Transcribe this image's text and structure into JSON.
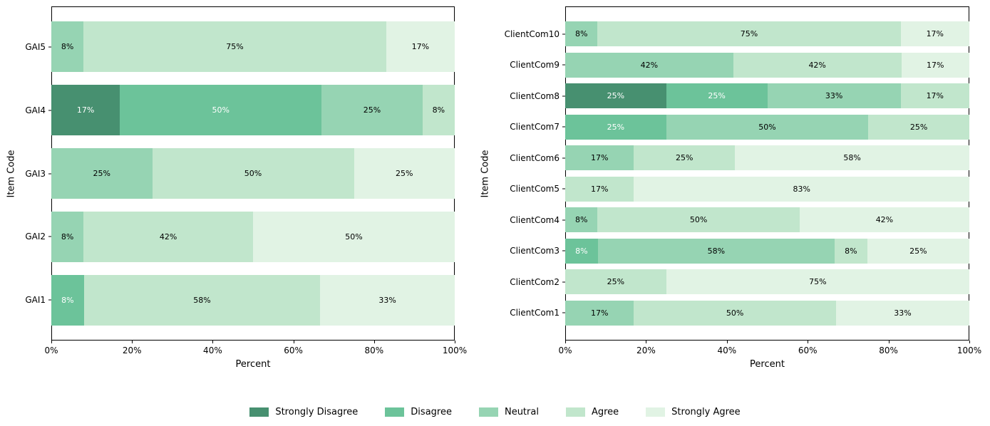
{
  "figure": {
    "background": "#ffffff"
  },
  "legend": {
    "items": [
      {
        "label": "Strongly Disagree",
        "color": "#479070"
      },
      {
        "label": "Disagree",
        "color": "#6cc39a"
      },
      {
        "label": "Neutral",
        "color": "#96d4b3"
      },
      {
        "label": "Agree",
        "color": "#c1e6cc"
      },
      {
        "label": "Strongly Agree",
        "color": "#e1f3e4"
      }
    ]
  },
  "chart_data": [
    {
      "type": "bar",
      "variant": "horizontal-stacked-likert",
      "title": "",
      "xlabel": "Percent",
      "ylabel": "Item Code",
      "xlim": [
        0,
        100
      ],
      "xtick_labels": [
        "0%",
        "20%",
        "40%",
        "60%",
        "80%",
        "100%"
      ],
      "value_suffix": "%",
      "grid": false,
      "category_order": "top-to-bottom",
      "categories": [
        "GAI5",
        "GAI4",
        "GAI3",
        "GAI2",
        "GAI1"
      ],
      "series": [
        {
          "name": "Strongly Disagree",
          "values": [
            0,
            17,
            0,
            0,
            0
          ]
        },
        {
          "name": "Disagree",
          "values": [
            0,
            50,
            0,
            0,
            8
          ]
        },
        {
          "name": "Neutral",
          "values": [
            8,
            25,
            25,
            8,
            0
          ]
        },
        {
          "name": "Agree",
          "values": [
            75,
            8,
            50,
            42,
            58
          ]
        },
        {
          "name": "Strongly Agree",
          "values": [
            17,
            0,
            25,
            50,
            33
          ]
        }
      ]
    },
    {
      "type": "bar",
      "variant": "horizontal-stacked-likert",
      "title": "",
      "xlabel": "Percent",
      "ylabel": "Item Code",
      "xlim": [
        0,
        100
      ],
      "xtick_labels": [
        "0%",
        "20%",
        "40%",
        "60%",
        "80%",
        "100%"
      ],
      "value_suffix": "%",
      "grid": false,
      "category_order": "top-to-bottom",
      "categories": [
        "ClientCom10",
        "ClientCom9",
        "ClientCom8",
        "ClientCom7",
        "ClientCom6",
        "ClientCom5",
        "ClientCom4",
        "ClientCom3",
        "ClientCom2",
        "ClientCom1"
      ],
      "series": [
        {
          "name": "Strongly Disagree",
          "values": [
            0,
            0,
            25,
            0,
            0,
            0,
            0,
            0,
            0,
            0
          ]
        },
        {
          "name": "Disagree",
          "values": [
            0,
            0,
            25,
            25,
            0,
            0,
            0,
            8,
            0,
            0
          ]
        },
        {
          "name": "Neutral",
          "values": [
            8,
            42,
            33,
            50,
            17,
            0,
            8,
            58,
            0,
            17
          ]
        },
        {
          "name": "Agree",
          "values": [
            75,
            42,
            17,
            25,
            25,
            17,
            50,
            8,
            25,
            50
          ]
        },
        {
          "name": "Strongly Agree",
          "values": [
            17,
            17,
            0,
            0,
            58,
            83,
            42,
            25,
            75,
            33
          ]
        }
      ]
    }
  ]
}
